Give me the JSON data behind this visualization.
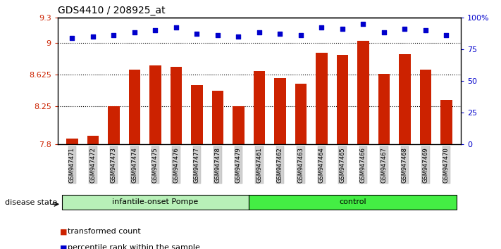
{
  "title": "GDS4410 / 208925_at",
  "samples": [
    "GSM947471",
    "GSM947472",
    "GSM947473",
    "GSM947474",
    "GSM947475",
    "GSM947476",
    "GSM947477",
    "GSM947478",
    "GSM947479",
    "GSM947461",
    "GSM947462",
    "GSM947463",
    "GSM947464",
    "GSM947465",
    "GSM947466",
    "GSM947467",
    "GSM947468",
    "GSM947469",
    "GSM947470"
  ],
  "bar_values": [
    7.87,
    7.9,
    8.25,
    8.68,
    8.73,
    8.72,
    8.5,
    8.43,
    8.25,
    8.67,
    8.58,
    8.52,
    8.88,
    8.86,
    9.02,
    8.63,
    8.87,
    8.68,
    8.33
  ],
  "percentile_values": [
    84,
    85,
    86,
    88,
    90,
    92,
    87,
    86,
    85,
    88,
    87,
    86,
    92,
    91,
    95,
    88,
    91,
    90,
    86
  ],
  "bar_color": "#cc2200",
  "dot_color": "#0000cc",
  "ylim_left": [
    7.8,
    9.3
  ],
  "ylim_right": [
    0,
    100
  ],
  "yticks_left": [
    7.8,
    8.25,
    8.625,
    9.0,
    9.3
  ],
  "ytick_labels_left": [
    "7.8",
    "8.25",
    "8.625",
    "9",
    "9.3"
  ],
  "yticks_right": [
    0,
    25,
    50,
    75,
    100
  ],
  "ytick_labels_right": [
    "0",
    "25",
    "50",
    "75",
    "100%"
  ],
  "hlines": [
    9.0,
    8.625,
    8.25
  ],
  "groups": [
    {
      "label": "infantile-onset Pompe",
      "start": 0,
      "end": 9
    },
    {
      "label": "control",
      "start": 9,
      "end": 19
    }
  ],
  "group_colors": [
    "#b8f0b8",
    "#44ee44"
  ],
  "disease_state_label": "disease state",
  "legend_items": [
    {
      "label": "transformed count",
      "color": "#cc2200"
    },
    {
      "label": "percentile rank within the sample",
      "color": "#0000cc"
    }
  ],
  "background_color": "#ffffff",
  "bar_width": 0.55
}
